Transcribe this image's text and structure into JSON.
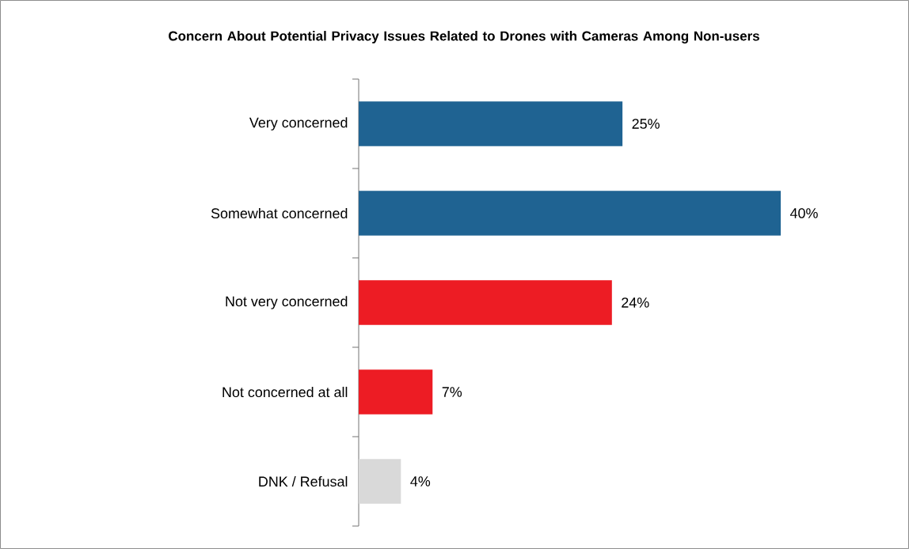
{
  "chart_data": {
    "type": "bar",
    "orientation": "horizontal",
    "title": "Concern About Potential Privacy Issues Related to Drones with Cameras Among Non-users",
    "categories": [
      "Very concerned",
      "Somewhat concerned",
      "Not very concerned",
      "Not concerned at all",
      "DNK / Refusal"
    ],
    "values": [
      25,
      40,
      24,
      7,
      4
    ],
    "colors": [
      "#1f6392",
      "#1f6392",
      "#ed1c24",
      "#ed1c24",
      "#d9d9d9"
    ],
    "value_labels": [
      "25%",
      "40%",
      "24%",
      "7%",
      "4%"
    ]
  }
}
